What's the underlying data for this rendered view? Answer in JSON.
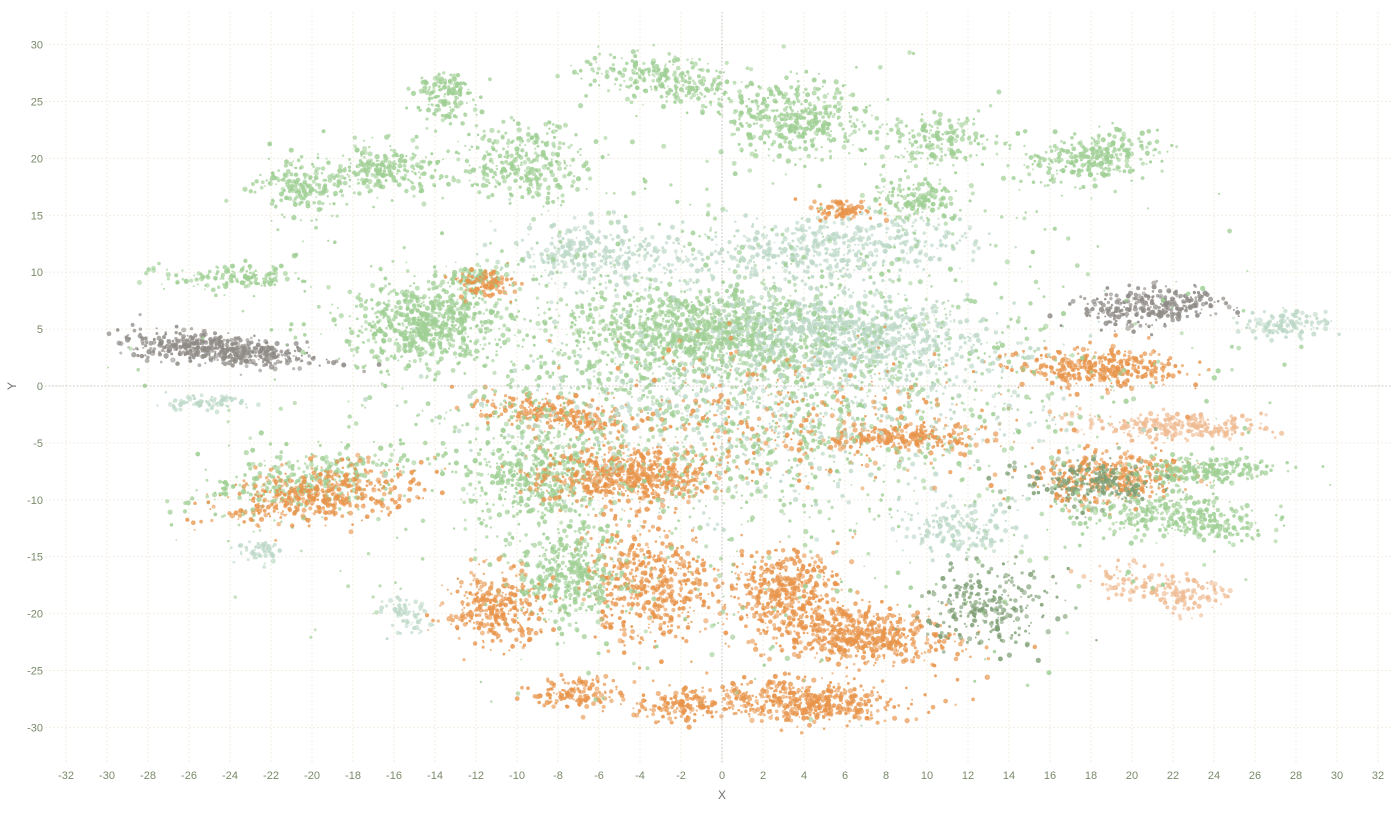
{
  "chart_data": {
    "type": "scatter",
    "title": "",
    "xlabel": "X",
    "ylabel": "Y",
    "xlim": [
      -33,
      33
    ],
    "ylim": [
      -33,
      31
    ],
    "xticks": [
      "-32",
      "-30",
      "-28",
      "-26",
      "-24",
      "-22",
      "-20",
      "-18",
      "-16",
      "-14",
      "-12",
      "-10",
      "-8",
      "-6",
      "-4",
      "-2",
      "0",
      "2",
      "4",
      "6",
      "8",
      "10",
      "12",
      "14",
      "16",
      "18",
      "20",
      "22",
      "24",
      "26",
      "28",
      "30",
      "32"
    ],
    "yticks": [
      "-30",
      "-25",
      "-20",
      "-15",
      "-10",
      "-5",
      "0",
      "5",
      "10",
      "15",
      "20",
      "25",
      "30"
    ],
    "grid": true,
    "zero_lines": true,
    "legend": "none",
    "colors": {
      "light_green": "#9fcf94",
      "sage": "#bcd8c7",
      "orange": "#e8944a",
      "peach": "#efbb92",
      "gray": "#8e8a86",
      "dark_green": "#7e9f75"
    },
    "clusters": [
      {
        "color": "light_green",
        "cx": -14.5,
        "cy": 5.5,
        "rx": 3.2,
        "ry": 3.2,
        "n": 700
      },
      {
        "color": "gray",
        "cx": -24.5,
        "cy": 3.2,
        "rx": 4.0,
        "ry": 1.2,
        "rot": -10,
        "n": 520
      },
      {
        "color": "light_green",
        "cx": -13.5,
        "cy": 25.5,
        "rx": 1.2,
        "ry": 2.2,
        "n": 160
      },
      {
        "color": "light_green",
        "cx": -20.5,
        "cy": 17.5,
        "rx": 1.8,
        "ry": 2.3,
        "n": 180
      },
      {
        "color": "light_green",
        "cx": -16.5,
        "cy": 19.0,
        "rx": 2.5,
        "ry": 2.0,
        "n": 220
      },
      {
        "color": "light_green",
        "cx": -9.5,
        "cy": 19.5,
        "rx": 2.8,
        "ry": 3.0,
        "n": 320
      },
      {
        "color": "light_green",
        "cx": -3.0,
        "cy": 27.0,
        "rx": 3.5,
        "ry": 1.8,
        "rot": -15,
        "n": 260
      },
      {
        "color": "light_green",
        "cx": 3.5,
        "cy": 23.5,
        "rx": 3.5,
        "ry": 3.0,
        "n": 420
      },
      {
        "color": "light_green",
        "cx": 10.5,
        "cy": 21.5,
        "rx": 2.5,
        "ry": 2.0,
        "n": 180
      },
      {
        "color": "light_green",
        "cx": 18.0,
        "cy": 20.0,
        "rx": 3.0,
        "ry": 2.0,
        "rot": 20,
        "n": 300
      },
      {
        "color": "light_green",
        "cx": -12.0,
        "cy": 9.5,
        "rx": 1.2,
        "ry": 1.0,
        "n": 100
      },
      {
        "color": "light_green",
        "cx": -24.0,
        "cy": 9.5,
        "rx": 3.0,
        "ry": 1.0,
        "n": 140
      },
      {
        "color": "light_green",
        "cx": -1.0,
        "cy": 5.0,
        "rx": 6.0,
        "ry": 3.0,
        "n": 900
      },
      {
        "color": "sage",
        "cx": 6.0,
        "cy": 4.5,
        "rx": 6.5,
        "ry": 3.0,
        "rot": -10,
        "n": 850
      },
      {
        "color": "sage",
        "cx": 5.0,
        "cy": 12.0,
        "rx": 6.0,
        "ry": 2.5,
        "rot": 10,
        "n": 500
      },
      {
        "color": "sage",
        "cx": -6.0,
        "cy": 11.5,
        "rx": 4.0,
        "ry": 2.5,
        "n": 320
      },
      {
        "color": "light_green",
        "cx": -9.0,
        "cy": -8.0,
        "rx": 3.0,
        "ry": 4.0,
        "n": 420
      },
      {
        "color": "light_green",
        "cx": -20.5,
        "cy": -8.5,
        "rx": 4.5,
        "ry": 2.5,
        "rot": 20,
        "n": 320
      },
      {
        "color": "orange",
        "cx": -19.5,
        "cy": -9.5,
        "rx": 4.5,
        "ry": 2.2,
        "rot": 15,
        "n": 450
      },
      {
        "color": "orange",
        "cx": -4.5,
        "cy": -8.0,
        "rx": 3.8,
        "ry": 2.2,
        "n": 600
      },
      {
        "color": "orange",
        "cx": -3.5,
        "cy": -17.5,
        "rx": 2.8,
        "ry": 4.5,
        "n": 520
      },
      {
        "color": "light_green",
        "cx": -7.5,
        "cy": -16.5,
        "rx": 2.3,
        "ry": 4.0,
        "n": 420
      },
      {
        "color": "orange",
        "cx": 3.0,
        "cy": -17.5,
        "rx": 2.5,
        "ry": 2.8,
        "n": 380
      },
      {
        "color": "orange",
        "cx": 6.5,
        "cy": -21.8,
        "rx": 4.5,
        "ry": 2.2,
        "rot": -10,
        "n": 620
      },
      {
        "color": "orange",
        "cx": 4.0,
        "cy": -27.8,
        "rx": 4.5,
        "ry": 1.7,
        "rot": -6,
        "n": 500
      },
      {
        "color": "orange",
        "cx": -11.0,
        "cy": -19.5,
        "rx": 2.2,
        "ry": 3.0,
        "n": 320
      },
      {
        "color": "orange",
        "cx": -7.0,
        "cy": -27.0,
        "rx": 2.0,
        "ry": 1.3,
        "n": 140
      },
      {
        "color": "orange",
        "cx": -2.0,
        "cy": -28.3,
        "rx": 1.8,
        "ry": 1.3,
        "n": 140
      },
      {
        "color": "orange",
        "cx": -8.0,
        "cy": -2.5,
        "rx": 3.5,
        "ry": 1.2,
        "rot": -15,
        "n": 240
      },
      {
        "color": "orange",
        "cx": 18.5,
        "cy": 1.5,
        "rx": 3.5,
        "ry": 1.5,
        "n": 360
      },
      {
        "color": "orange",
        "cx": 19.0,
        "cy": -8.0,
        "rx": 3.5,
        "ry": 2.0,
        "rot": 10,
        "n": 360
      },
      {
        "color": "orange",
        "cx": 9.0,
        "cy": -4.5,
        "rx": 3.5,
        "ry": 1.0,
        "n": 240
      },
      {
        "color": "peach",
        "cx": 22.0,
        "cy": -3.5,
        "rx": 4.0,
        "ry": 1.0,
        "rot": -3,
        "n": 260
      },
      {
        "color": "peach",
        "cx": 22.0,
        "cy": -18.0,
        "rx": 3.5,
        "ry": 1.5,
        "rot": -25,
        "n": 200
      },
      {
        "color": "light_green",
        "cx": 22.0,
        "cy": -11.5,
        "rx": 4.5,
        "ry": 1.8,
        "rot": -12,
        "n": 380
      },
      {
        "color": "light_green",
        "cx": 23.5,
        "cy": -7.5,
        "rx": 3.0,
        "ry": 1.0,
        "rot": 5,
        "n": 220
      },
      {
        "color": "gray",
        "cx": 21.0,
        "cy": 7.0,
        "rx": 3.0,
        "ry": 1.5,
        "rot": 12,
        "n": 300
      },
      {
        "color": "dark_green",
        "cx": 13.0,
        "cy": -19.5,
        "rx": 3.0,
        "ry": 3.0,
        "n": 260
      },
      {
        "color": "dark_green",
        "cx": 18.0,
        "cy": -8.5,
        "rx": 3.0,
        "ry": 2.0,
        "n": 220
      },
      {
        "color": "sage",
        "cx": 11.5,
        "cy": -12.5,
        "rx": 2.5,
        "ry": 2.0,
        "n": 160
      },
      {
        "color": "sage",
        "cx": 27.5,
        "cy": 5.5,
        "rx": 2.0,
        "ry": 1.0,
        "n": 120
      },
      {
        "color": "light_green",
        "cx": 9.5,
        "cy": 16.5,
        "rx": 2.0,
        "ry": 1.5,
        "n": 140
      },
      {
        "color": "sage",
        "cx": -25.5,
        "cy": -1.5,
        "rx": 2.0,
        "ry": 0.6,
        "n": 80
      },
      {
        "color": "sage",
        "cx": -15.5,
        "cy": -20.0,
        "rx": 1.0,
        "ry": 1.8,
        "rot": 30,
        "n": 60
      },
      {
        "color": "sage",
        "cx": -22.5,
        "cy": -14.5,
        "rx": 1.0,
        "ry": 1.0,
        "n": 50
      },
      {
        "color": "orange",
        "cx": 6.0,
        "cy": 15.5,
        "rx": 1.3,
        "ry": 0.8,
        "n": 90
      },
      {
        "color": "orange",
        "cx": -11.5,
        "cy": 9.0,
        "rx": 1.2,
        "ry": 1.2,
        "n": 90
      },
      {
        "color": "light_green",
        "cx": 0.0,
        "cy": 0.0,
        "rx": 14.0,
        "ry": 10.0,
        "n": 1200
      },
      {
        "color": "sage",
        "cx": 2.0,
        "cy": -2.0,
        "rx": 12.0,
        "ry": 8.0,
        "n": 700
      },
      {
        "color": "orange",
        "cx": 3.0,
        "cy": -3.0,
        "rx": 10.0,
        "ry": 6.0,
        "n": 350
      },
      {
        "color": "light_green",
        "cx": 0.0,
        "cy": 0.0,
        "rx": 24.0,
        "ry": 24.0,
        "n": 900
      }
    ]
  }
}
